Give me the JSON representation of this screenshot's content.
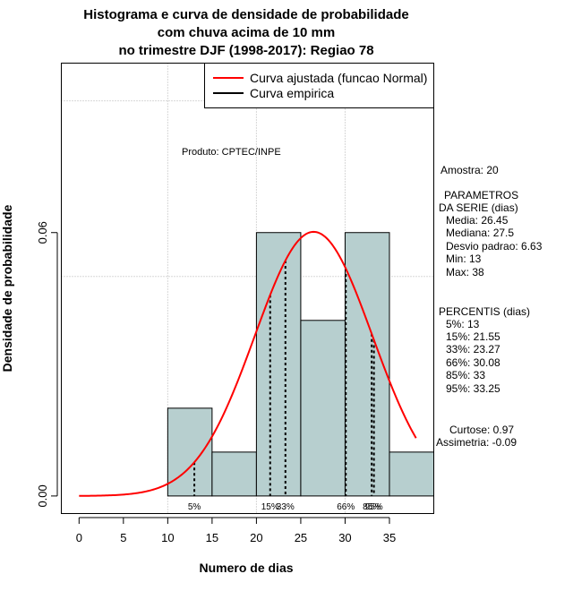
{
  "chart_data": {
    "type": "bar",
    "title_lines": [
      "Histograma e curva de densidade de probabilidade",
      "com chuva acima de 10 mm",
      "no trimestre DJF (1998-2017): Regiao 78"
    ],
    "xlabel": "Numero de dias",
    "ylabel": "Densidade de probabilidade",
    "xlim": [
      -2,
      40
    ],
    "ylim": [
      -0.004,
      0.0986
    ],
    "xticks": [
      0,
      5,
      10,
      15,
      20,
      25,
      30,
      35
    ],
    "yticks": [
      0.0,
      0.06
    ],
    "ytick_labels": [
      "0.00",
      "0.06"
    ],
    "grid_x": [
      10,
      20,
      30
    ],
    "grid_y": [
      0.05,
      0.09
    ],
    "bins": [
      {
        "x0": 10,
        "x1": 15,
        "density": 0.02
      },
      {
        "x0": 15,
        "x1": 20,
        "density": 0.01
      },
      {
        "x0": 20,
        "x1": 25,
        "density": 0.06
      },
      {
        "x0": 25,
        "x1": 30,
        "density": 0.04
      },
      {
        "x0": 30,
        "x1": 35,
        "density": 0.06
      },
      {
        "x0": 35,
        "x1": 40,
        "density": 0.01
      }
    ],
    "normal_fit": {
      "mean": 26.45,
      "sd": 6.63,
      "x_from": 0,
      "x_to": 38
    },
    "percentile_lines": [
      {
        "x": 13,
        "label": "5%"
      },
      {
        "x": 21.55,
        "label": "15%"
      },
      {
        "x": 23.27,
        "label": "33%"
      },
      {
        "x": 30.08,
        "label": "66%"
      },
      {
        "x": 33,
        "label": "85%"
      },
      {
        "x": 33.25,
        "label": "95%"
      }
    ],
    "legend": {
      "position": "top-right",
      "entries": [
        {
          "label": "Curva ajustada (funcao Normal)",
          "color": "#ff0000"
        },
        {
          "label": "Curva empirica",
          "color": "#000000"
        }
      ]
    },
    "annotation": "Produto: CPTEC/INPE",
    "bar_color": "#b7cfcf",
    "curve_color": "#ff0000"
  },
  "side_panel": {
    "amostra": "Amostra: 20",
    "param_lines": [
      "PARAMETROS",
      "DA SERIE (dias)",
      "Media: 26.45",
      "Mediana: 27.5",
      "Desvio padrao: 6.63",
      "Min: 13",
      "Max: 38"
    ],
    "percentis_lines": [
      "PERCENTIS (dias)",
      "5%: 13",
      "15%: 21.55",
      "33%: 23.27",
      "66%: 30.08",
      "85%: 33",
      "95%: 33.25"
    ],
    "curtose": "Curtose: 0.97",
    "assimetria": "Assimetria: -0.09"
  }
}
